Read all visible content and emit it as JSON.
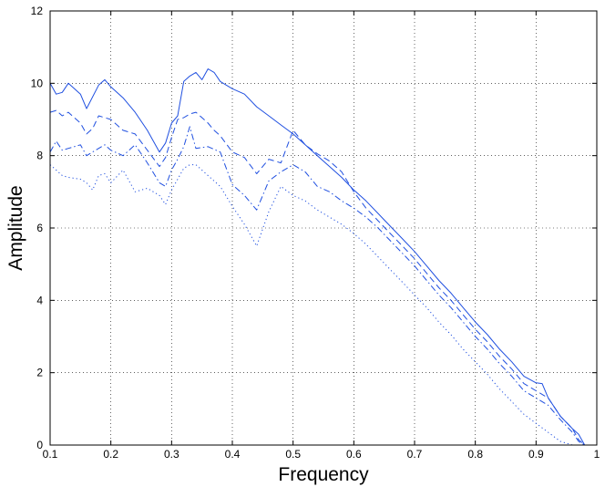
{
  "chart_data": {
    "type": "line",
    "title": "",
    "xlabel": "Frequency",
    "ylabel": "Amplitude",
    "xlim": [
      0.1,
      1.0
    ],
    "ylim": [
      0,
      12
    ],
    "xticks": [
      "0.1",
      "0.2",
      "0.3",
      "0.4",
      "0.5",
      "0.6",
      "0.7",
      "0.8",
      "0.9",
      "1"
    ],
    "xtick_values": [
      0.1,
      0.2,
      0.3,
      0.4,
      0.5,
      0.6,
      0.7,
      0.8,
      0.9,
      1.0
    ],
    "yticks": [
      "0",
      "2",
      "4",
      "6",
      "8",
      "10",
      "12"
    ],
    "ytick_values": [
      0,
      2,
      4,
      6,
      8,
      10,
      12
    ],
    "grid": true,
    "line_color": "#1f4fe0",
    "series": [
      {
        "line_style": "solid",
        "x": [
          0.1,
          0.11,
          0.12,
          0.13,
          0.15,
          0.16,
          0.18,
          0.19,
          0.2,
          0.22,
          0.24,
          0.26,
          0.28,
          0.29,
          0.3,
          0.31,
          0.32,
          0.33,
          0.34,
          0.35,
          0.36,
          0.37,
          0.38,
          0.39,
          0.4,
          0.42,
          0.44,
          0.46,
          0.48,
          0.5,
          0.52,
          0.54,
          0.56,
          0.58,
          0.6,
          0.62,
          0.64,
          0.66,
          0.68,
          0.7,
          0.72,
          0.74,
          0.76,
          0.78,
          0.8,
          0.82,
          0.84,
          0.86,
          0.88,
          0.9,
          0.91,
          0.92,
          0.94,
          0.96,
          0.97,
          0.98,
          0.99
        ],
        "y": [
          10.0,
          9.7,
          9.75,
          10.0,
          9.7,
          9.3,
          9.95,
          10.1,
          9.9,
          9.6,
          9.2,
          8.7,
          8.1,
          8.35,
          8.9,
          9.1,
          10.05,
          10.2,
          10.3,
          10.1,
          10.4,
          10.3,
          10.05,
          9.95,
          9.85,
          9.7,
          9.35,
          9.1,
          8.85,
          8.6,
          8.3,
          8.0,
          7.7,
          7.4,
          7.05,
          6.75,
          6.4,
          6.05,
          5.7,
          5.35,
          4.95,
          4.55,
          4.2,
          3.8,
          3.4,
          3.05,
          2.65,
          2.3,
          1.9,
          1.72,
          1.7,
          1.3,
          0.8,
          0.45,
          0.3,
          0.0,
          0.0
        ]
      },
      {
        "line_style": "dashed",
        "x": [
          0.1,
          0.11,
          0.12,
          0.13,
          0.15,
          0.16,
          0.17,
          0.18,
          0.19,
          0.2,
          0.22,
          0.24,
          0.26,
          0.28,
          0.29,
          0.3,
          0.31,
          0.32,
          0.33,
          0.34,
          0.35,
          0.36,
          0.37,
          0.38,
          0.4,
          0.42,
          0.44,
          0.46,
          0.48,
          0.5,
          0.52,
          0.54,
          0.56,
          0.58,
          0.6,
          0.62,
          0.64,
          0.66,
          0.68,
          0.7,
          0.72,
          0.74,
          0.76,
          0.78,
          0.8,
          0.82,
          0.84,
          0.86,
          0.88,
          0.9,
          0.92,
          0.94,
          0.96,
          0.97,
          0.98
        ],
        "y": [
          9.2,
          9.25,
          9.1,
          9.2,
          8.9,
          8.6,
          8.75,
          9.1,
          9.05,
          9.0,
          8.7,
          8.6,
          8.15,
          7.7,
          7.95,
          8.5,
          9.0,
          9.05,
          9.15,
          9.2,
          9.05,
          8.9,
          8.7,
          8.55,
          8.1,
          7.95,
          7.5,
          7.9,
          7.8,
          8.7,
          8.3,
          8.05,
          7.85,
          7.55,
          7.0,
          6.55,
          6.2,
          5.85,
          5.5,
          5.15,
          4.75,
          4.35,
          4.0,
          3.6,
          3.2,
          2.85,
          2.45,
          2.1,
          1.7,
          1.5,
          1.3,
          0.8,
          0.45,
          0.15,
          0.0
        ]
      },
      {
        "line_style": "dashdot",
        "x": [
          0.1,
          0.11,
          0.12,
          0.13,
          0.15,
          0.16,
          0.18,
          0.19,
          0.2,
          0.22,
          0.24,
          0.26,
          0.28,
          0.29,
          0.3,
          0.31,
          0.32,
          0.33,
          0.34,
          0.36,
          0.38,
          0.4,
          0.42,
          0.44,
          0.46,
          0.48,
          0.5,
          0.52,
          0.54,
          0.56,
          0.58,
          0.6,
          0.62,
          0.64,
          0.66,
          0.68,
          0.7,
          0.72,
          0.74,
          0.76,
          0.78,
          0.8,
          0.82,
          0.84,
          0.86,
          0.88,
          0.9,
          0.92,
          0.94,
          0.96,
          0.97,
          0.98
        ],
        "y": [
          8.1,
          8.4,
          8.15,
          8.2,
          8.3,
          8.0,
          8.2,
          8.3,
          8.15,
          8.0,
          8.3,
          7.8,
          7.25,
          7.15,
          7.6,
          7.9,
          8.25,
          8.8,
          8.2,
          8.25,
          8.1,
          7.2,
          6.9,
          6.5,
          7.3,
          7.55,
          7.75,
          7.55,
          7.15,
          7.0,
          6.75,
          6.55,
          6.3,
          6.0,
          5.65,
          5.3,
          4.95,
          4.55,
          4.15,
          3.8,
          3.4,
          3.0,
          2.65,
          2.25,
          1.9,
          1.5,
          1.3,
          1.1,
          0.7,
          0.35,
          0.1,
          0.0
        ]
      },
      {
        "line_style": "dotted",
        "x": [
          0.1,
          0.11,
          0.12,
          0.13,
          0.15,
          0.16,
          0.17,
          0.18,
          0.19,
          0.2,
          0.22,
          0.24,
          0.26,
          0.28,
          0.29,
          0.3,
          0.31,
          0.32,
          0.33,
          0.34,
          0.36,
          0.38,
          0.4,
          0.42,
          0.44,
          0.46,
          0.48,
          0.5,
          0.52,
          0.54,
          0.56,
          0.58,
          0.6,
          0.62,
          0.64,
          0.66,
          0.68,
          0.7,
          0.72,
          0.74,
          0.76,
          0.78,
          0.8,
          0.82,
          0.84,
          0.86,
          0.88,
          0.9,
          0.92,
          0.94,
          0.96
        ],
        "y": [
          7.75,
          7.6,
          7.45,
          7.4,
          7.35,
          7.25,
          7.05,
          7.45,
          7.5,
          7.25,
          7.6,
          7.0,
          7.1,
          6.9,
          6.65,
          7.05,
          7.35,
          7.65,
          7.75,
          7.75,
          7.45,
          7.15,
          6.6,
          6.1,
          5.5,
          6.45,
          7.15,
          6.9,
          6.75,
          6.5,
          6.3,
          6.1,
          5.85,
          5.55,
          5.2,
          4.85,
          4.5,
          4.15,
          3.8,
          3.4,
          3.05,
          2.65,
          2.3,
          1.95,
          1.55,
          1.2,
          0.85,
          0.6,
          0.35,
          0.1,
          0.0
        ]
      }
    ]
  }
}
